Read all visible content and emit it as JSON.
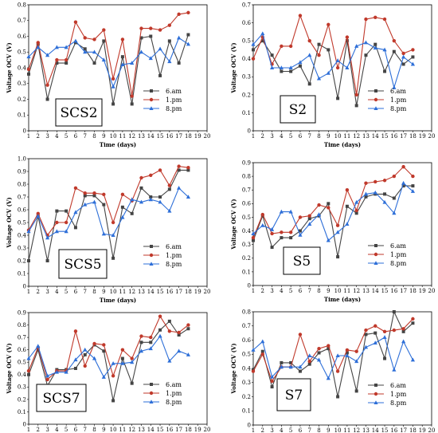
{
  "chart_data": [
    {
      "type": "line",
      "title": "SCS2",
      "xlabel": "Time (days)",
      "ylabel": "Voltage OCV (V)",
      "xlim": [
        1,
        20
      ],
      "ylim": [
        0,
        0.8
      ],
      "yticks": [
        0,
        0.1,
        0.2,
        0.3,
        0.4,
        0.5,
        0.6,
        0.7,
        0.8
      ],
      "legend": "bottom-right",
      "grid": false,
      "x": [
        1,
        2,
        3,
        4,
        5,
        6,
        7,
        8,
        9,
        10,
        11,
        12,
        13,
        14,
        15,
        16,
        17,
        18
      ],
      "series": [
        {
          "name": "6.am",
          "color": "#444444",
          "marker": "square",
          "values": [
            0.36,
            0.55,
            0.2,
            0.43,
            0.43,
            0.56,
            0.52,
            0.43,
            0.57,
            0.17,
            0.47,
            0.17,
            0.59,
            0.6,
            0.35,
            0.57,
            0.43,
            0.61
          ]
        },
        {
          "name": "1.pm",
          "color": "#c0392b",
          "marker": "circle",
          "values": [
            0.39,
            0.56,
            0.29,
            0.45,
            0.45,
            0.69,
            0.59,
            0.58,
            0.64,
            0.33,
            0.58,
            0.22,
            0.65,
            0.65,
            0.64,
            0.67,
            0.74,
            0.75
          ]
        },
        {
          "name": "8.pm",
          "color": "#2e6fd8",
          "marker": "triangle",
          "values": [
            0.47,
            0.53,
            0.48,
            0.53,
            0.53,
            0.57,
            0.5,
            0.5,
            0.45,
            0.28,
            0.42,
            0.43,
            0.5,
            0.46,
            0.52,
            0.44,
            0.59,
            0.55
          ]
        }
      ]
    },
    {
      "type": "line",
      "title": "S2",
      "xlabel": "Time (days)",
      "ylabel": "Voltage OCV (V)",
      "xlim": [
        1,
        20
      ],
      "ylim": [
        0,
        0.7
      ],
      "yticks": [
        0,
        0.1,
        0.2,
        0.3,
        0.4,
        0.5,
        0.6,
        0.7
      ],
      "legend": "bottom-right",
      "grid": false,
      "x": [
        1,
        2,
        3,
        4,
        5,
        6,
        7,
        8,
        9,
        10,
        11,
        12,
        13,
        14,
        15,
        16,
        17,
        18
      ],
      "series": [
        {
          "name": "6.am",
          "color": "#444444",
          "marker": "square",
          "values": [
            0.45,
            0.5,
            0.42,
            0.33,
            0.33,
            0.36,
            0.26,
            0.48,
            0.45,
            0.18,
            0.5,
            0.14,
            0.42,
            0.48,
            0.33,
            0.44,
            0.37,
            0.41
          ]
        },
        {
          "name": "1.pm",
          "color": "#c0392b",
          "marker": "circle",
          "values": [
            0.4,
            0.52,
            0.37,
            0.47,
            0.47,
            0.64,
            0.5,
            0.42,
            0.59,
            0.35,
            0.52,
            0.2,
            0.62,
            0.63,
            0.62,
            0.5,
            0.43,
            0.45
          ]
        },
        {
          "name": "8.pm",
          "color": "#2e6fd8",
          "marker": "triangle",
          "values": [
            0.48,
            0.54,
            0.35,
            0.35,
            0.35,
            0.38,
            0.42,
            0.29,
            0.32,
            0.39,
            0.35,
            0.47,
            0.49,
            0.46,
            0.45,
            0.24,
            0.41,
            0.37
          ]
        }
      ]
    },
    {
      "type": "line",
      "title": "SCS5",
      "xlabel": "Time (days)",
      "ylabel": "Voltage OCV (V)",
      "xlim": [
        1,
        20
      ],
      "ylim": [
        0,
        1.0
      ],
      "yticks": [
        0,
        0.1,
        0.2,
        0.3,
        0.4,
        0.5,
        0.6,
        0.7,
        0.8,
        0.9,
        1.0
      ],
      "legend": "bottom-right",
      "grid": false,
      "x": [
        1,
        2,
        3,
        4,
        5,
        6,
        7,
        8,
        9,
        10,
        11,
        12,
        13,
        14,
        15,
        16,
        17,
        18
      ],
      "series": [
        {
          "name": "6.am",
          "color": "#444444",
          "marker": "square",
          "values": [
            0.2,
            0.55,
            0.2,
            0.59,
            0.59,
            0.46,
            0.71,
            0.71,
            0.64,
            0.22,
            0.62,
            0.57,
            0.77,
            0.7,
            0.7,
            0.76,
            0.91,
            0.91
          ]
        },
        {
          "name": "1.pm",
          "color": "#c0392b",
          "marker": "circle",
          "values": [
            0.44,
            0.57,
            0.4,
            0.5,
            0.5,
            0.77,
            0.73,
            0.73,
            0.72,
            0.5,
            0.72,
            0.67,
            0.85,
            0.87,
            0.91,
            0.79,
            0.94,
            0.93
          ]
        },
        {
          "name": "8.pm",
          "color": "#2e6fd8",
          "marker": "triangle",
          "values": [
            0.43,
            0.55,
            0.38,
            0.43,
            0.43,
            0.58,
            0.64,
            0.66,
            0.41,
            0.4,
            0.54,
            0.68,
            0.66,
            0.68,
            0.66,
            0.59,
            0.77,
            0.7
          ]
        }
      ]
    },
    {
      "type": "line",
      "title": "S5",
      "xlabel": "Time (days)",
      "ylabel": "Voltage OCV (V)",
      "xlim": [
        1,
        20
      ],
      "ylim": [
        0,
        0.9
      ],
      "yticks": [
        0,
        0.1,
        0.2,
        0.3,
        0.4,
        0.5,
        0.6,
        0.7,
        0.8,
        0.9
      ],
      "legend": "bottom-right",
      "grid": false,
      "x": [
        1,
        2,
        3,
        4,
        5,
        6,
        7,
        8,
        9,
        10,
        11,
        12,
        13,
        14,
        15,
        16,
        17,
        18
      ],
      "series": [
        {
          "name": "6.am",
          "color": "#444444",
          "marker": "square",
          "values": [
            0.33,
            0.51,
            0.28,
            0.35,
            0.35,
            0.4,
            0.49,
            0.51,
            0.6,
            0.21,
            0.58,
            0.53,
            0.65,
            0.67,
            0.67,
            0.64,
            0.73,
            0.73
          ]
        },
        {
          "name": "1.pm",
          "color": "#c0392b",
          "marker": "circle",
          "values": [
            0.35,
            0.52,
            0.38,
            0.39,
            0.39,
            0.5,
            0.51,
            0.59,
            0.57,
            0.44,
            0.7,
            0.55,
            0.75,
            0.76,
            0.77,
            0.8,
            0.87,
            0.8
          ]
        },
        {
          "name": "8.pm",
          "color": "#2e6fd8",
          "marker": "triangle",
          "values": [
            0.38,
            0.44,
            0.41,
            0.54,
            0.54,
            0.37,
            0.45,
            0.52,
            0.33,
            0.39,
            0.45,
            0.61,
            0.67,
            0.68,
            0.61,
            0.53,
            0.75,
            0.69
          ]
        }
      ]
    },
    {
      "type": "line",
      "title": "SCS7",
      "xlabel": "Time (days)",
      "ylabel": "Voltage OCV (V)",
      "xlim": [
        1,
        20
      ],
      "ylim": [
        0,
        0.9
      ],
      "yticks": [
        0,
        0.1,
        0.2,
        0.3,
        0.4,
        0.5,
        0.6,
        0.7,
        0.8,
        0.9
      ],
      "legend": "bottom-right",
      "grid": false,
      "x": [
        1,
        2,
        3,
        4,
        5,
        6,
        7,
        8,
        9,
        10,
        11,
        12,
        13,
        14,
        15,
        16,
        17,
        18
      ],
      "series": [
        {
          "name": "6.am",
          "color": "#444444",
          "marker": "square",
          "values": [
            0.4,
            0.6,
            0.31,
            0.44,
            0.44,
            0.45,
            0.56,
            0.64,
            0.59,
            0.19,
            0.53,
            0.33,
            0.66,
            0.66,
            0.76,
            0.83,
            0.72,
            0.77
          ]
        },
        {
          "name": "1.pm",
          "color": "#c0392b",
          "marker": "circle",
          "values": [
            0.43,
            0.62,
            0.36,
            0.43,
            0.43,
            0.75,
            0.47,
            0.65,
            0.64,
            0.39,
            0.6,
            0.53,
            0.71,
            0.7,
            0.87,
            0.75,
            0.74,
            0.8
          ]
        },
        {
          "name": "8.pm",
          "color": "#2e6fd8",
          "marker": "triangle",
          "values": [
            0.53,
            0.63,
            0.39,
            0.42,
            0.42,
            0.52,
            0.6,
            0.53,
            0.38,
            0.49,
            0.49,
            0.5,
            0.59,
            0.61,
            0.71,
            0.51,
            0.59,
            0.56
          ]
        }
      ]
    },
    {
      "type": "line",
      "title": "S7",
      "xlabel": "Time (days)",
      "ylabel": "Voltage OCV (V)",
      "xlim": [
        1,
        20
      ],
      "ylim": [
        0,
        0.8
      ],
      "yticks": [
        0,
        0.1,
        0.2,
        0.3,
        0.4,
        0.5,
        0.6,
        0.7,
        0.8
      ],
      "legend": "bottom-right",
      "grid": false,
      "x": [
        1,
        2,
        3,
        4,
        5,
        6,
        7,
        8,
        9,
        10,
        11,
        12,
        13,
        14,
        15,
        16,
        17,
        18
      ],
      "series": [
        {
          "name": "6.am",
          "color": "#444444",
          "marker": "square",
          "values": [
            0.39,
            0.52,
            0.27,
            0.44,
            0.44,
            0.38,
            0.43,
            0.51,
            0.54,
            0.2,
            0.51,
            0.24,
            0.64,
            0.65,
            0.47,
            0.8,
            0.66,
            0.72
          ]
        },
        {
          "name": "1.pm",
          "color": "#c0392b",
          "marker": "circle",
          "values": [
            0.38,
            0.5,
            0.31,
            0.41,
            0.41,
            0.64,
            0.45,
            0.54,
            0.56,
            0.38,
            0.53,
            0.52,
            0.67,
            0.7,
            0.66,
            0.67,
            0.68,
            0.75
          ]
        },
        {
          "name": "8.pm",
          "color": "#2e6fd8",
          "marker": "triangle",
          "values": [
            0.53,
            0.59,
            0.34,
            0.41,
            0.41,
            0.41,
            0.49,
            0.46,
            0.33,
            0.49,
            0.49,
            0.45,
            0.55,
            0.58,
            0.62,
            0.39,
            0.59,
            0.46
          ]
        }
      ]
    }
  ]
}
